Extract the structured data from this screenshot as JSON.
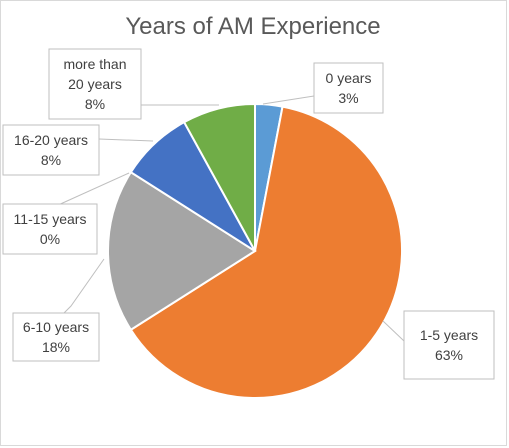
{
  "chart_data": {
    "type": "pie",
    "title": "Years of AM Experience",
    "slices": [
      {
        "category": "0 years",
        "value": 3,
        "label": "3%",
        "color": "#5b9bd5"
      },
      {
        "category": "1-5 years",
        "value": 63,
        "label": "63%",
        "color": "#ed7d31"
      },
      {
        "category": "6-10 years",
        "value": 18,
        "label": "18%",
        "color": "#a5a5a5"
      },
      {
        "category": "11-15 years",
        "value": 0,
        "label": "0%",
        "color": "#ffc000"
      },
      {
        "category": "16-20 years",
        "value": 8,
        "label": "8%",
        "color": "#4472c4"
      },
      {
        "category": "more than 20 years",
        "value": 8,
        "label": "8%",
        "color": "#70ad47"
      }
    ],
    "legend": "none",
    "data_labels": "outside with leader lines"
  }
}
